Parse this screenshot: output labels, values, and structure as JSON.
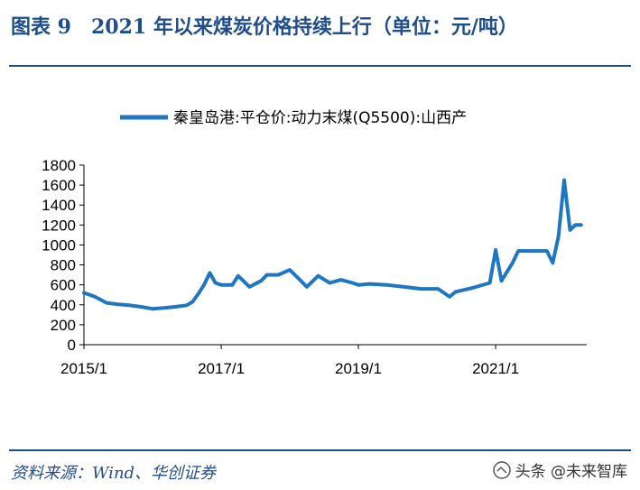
{
  "header": {
    "title": "图表 9　2021 年以来煤炭价格持续上行（单位：元/吨）"
  },
  "footer": {
    "source": "资料来源：Wind、华创证券",
    "watermark": "头条 @未来智库"
  },
  "chart_data": {
    "type": "line",
    "title": "",
    "xlabel": "",
    "ylabel": "",
    "ylim": [
      0,
      1800
    ],
    "yticks": [
      0,
      200,
      400,
      600,
      800,
      1000,
      1200,
      1400,
      1600,
      1800
    ],
    "xticks": [
      "2015/1",
      "2017/1",
      "2019/1",
      "2021/1"
    ],
    "legend_position": "top",
    "grid": false,
    "color": "#1f77c4",
    "series": [
      {
        "name": "秦皇岛港:平仓价:动力末煤(Q5500):山西产",
        "points": [
          [
            "2015-01",
            520
          ],
          [
            "2015-03",
            480
          ],
          [
            "2015-05",
            420
          ],
          [
            "2015-07",
            405
          ],
          [
            "2015-09",
            395
          ],
          [
            "2015-11",
            380
          ],
          [
            "2016-01",
            360
          ],
          [
            "2016-03",
            368
          ],
          [
            "2016-05",
            380
          ],
          [
            "2016-07",
            395
          ],
          [
            "2016-08",
            430
          ],
          [
            "2016-09",
            510
          ],
          [
            "2016-10",
            600
          ],
          [
            "2016-11",
            720
          ],
          [
            "2016-12",
            620
          ],
          [
            "2017-01",
            600
          ],
          [
            "2017-03",
            600
          ],
          [
            "2017-04",
            690
          ],
          [
            "2017-06",
            580
          ],
          [
            "2017-08",
            640
          ],
          [
            "2017-09",
            700
          ],
          [
            "2017-11",
            700
          ],
          [
            "2018-01",
            750
          ],
          [
            "2018-03",
            640
          ],
          [
            "2018-04",
            580
          ],
          [
            "2018-06",
            690
          ],
          [
            "2018-08",
            620
          ],
          [
            "2018-10",
            650
          ],
          [
            "2018-12",
            620
          ],
          [
            "2019-01",
            600
          ],
          [
            "2019-03",
            610
          ],
          [
            "2019-06",
            600
          ],
          [
            "2019-09",
            580
          ],
          [
            "2019-12",
            560
          ],
          [
            "2020-03",
            560
          ],
          [
            "2020-05",
            480
          ],
          [
            "2020-06",
            530
          ],
          [
            "2020-09",
            570
          ],
          [
            "2020-12",
            620
          ],
          [
            "2021-01",
            950
          ],
          [
            "2021-02",
            640
          ],
          [
            "2021-04",
            820
          ],
          [
            "2021-05",
            940
          ],
          [
            "2021-08",
            940
          ],
          [
            "2021-10",
            940
          ],
          [
            "2021-11",
            820
          ],
          [
            "2021-12",
            1080
          ],
          [
            "2022-01",
            1650
          ],
          [
            "2022-02",
            1150
          ],
          [
            "2022-03",
            1200
          ],
          [
            "2022-04",
            1200
          ]
        ]
      }
    ]
  }
}
